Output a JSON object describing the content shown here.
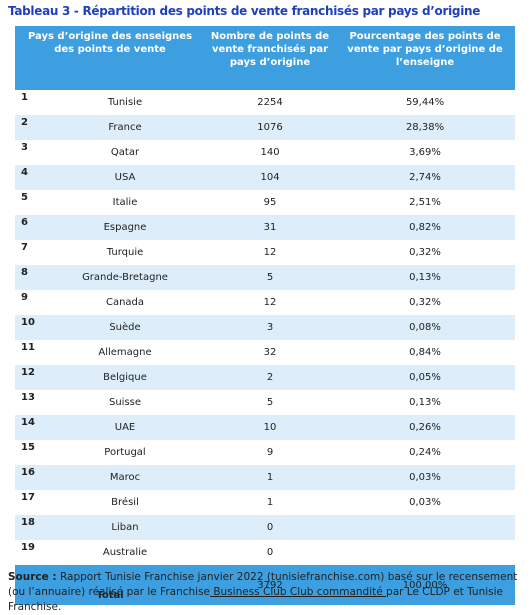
{
  "title": "Tableau 3 - Répartition des points de vente franchisés par pays d’origine",
  "table": {
    "header": [
      "Pays d’origine des enseignes des points de vente",
      "Nombre de points de vente franchisés par pays d’origine",
      "Pourcentage des points de vente par pays d’origine de l’enseigne"
    ],
    "rows": [
      [
        "1",
        "Tunisie",
        "2254",
        "59,44%"
      ],
      [
        "2",
        "France",
        "1076",
        "28,38%"
      ],
      [
        "3",
        "Qatar",
        "140",
        "3,69%"
      ],
      [
        "4",
        "USA",
        "104",
        "2,74%"
      ],
      [
        "5",
        "Italie",
        "95",
        "2,51%"
      ],
      [
        "6",
        "Espagne",
        "31",
        "0,82%"
      ],
      [
        "7",
        "Turquie",
        "12",
        "0,32%"
      ],
      [
        "8",
        "Grande-Bretagne",
        "5",
        "0,13%"
      ],
      [
        "9",
        "Canada",
        "12",
        "0,32%"
      ],
      [
        "10",
        "Suède",
        "3",
        "0,08%"
      ],
      [
        "11",
        "Allemagne",
        "32",
        "0,84%"
      ],
      [
        "12",
        "Belgique",
        "2",
        "0,05%"
      ],
      [
        "13",
        "Suisse",
        "5",
        "0,13%"
      ],
      [
        "14",
        "UAE",
        "10",
        "0,26%"
      ],
      [
        "15",
        "Portugal",
        "9",
        "0,24%"
      ],
      [
        "16",
        "Maroc",
        "1",
        "0,03%"
      ],
      [
        "17",
        "Brésil",
        "1",
        "0,03%"
      ],
      [
        "18",
        "Liban",
        "0",
        ""
      ],
      [
        "19",
        "Australie",
        "0",
        ""
      ]
    ],
    "total": [
      "Total",
      "3792",
      "100,00%"
    ]
  },
  "source": {
    "label": "Source :",
    "text_before": " Rapport Tunisie Franchise janvier 2022 (tunisiefranchise.com) basé sur le recensement (ou l’annuaire) réalisé par le Franchise",
    "underlined": " Business Club Club commandité ",
    "text_after": "par Le CLDP et Tunisie Franchise."
  }
}
